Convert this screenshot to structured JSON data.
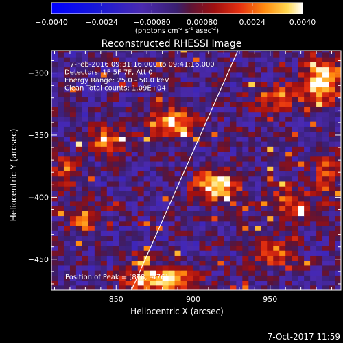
{
  "chart_data": {
    "type": "heatmap",
    "title": "Reconstructed RHESSI Image",
    "xlabel": "Heliocentric X (arcsec)",
    "ylabel": "Heliocentric Y (arcsec)",
    "xlim": [
      808,
      996
    ],
    "ylim": [
      -475,
      -282
    ],
    "x_ticks": [
      850,
      900,
      950
    ],
    "y_ticks": [
      -450,
      -400,
      -350,
      -300
    ],
    "colorbar": {
      "min": -0.004,
      "max": 0.004,
      "ticks": [
        "-0.0040",
        "-0.0024",
        "-0.00080",
        "0.00080",
        "0.0024",
        "0.0040"
      ],
      "units_label": "(photons cm",
      "units_sup1": "-2",
      "units_mid": " s",
      "units_sup2": "-1",
      "units_mid2": " asec",
      "units_sup3": "-2",
      "units_end": ")"
    },
    "info_lines": [
      "7-Feb-2016 09:31:16.000 to 09:41:16.000",
      "Detectors: 1F 5F 7F, Att 0",
      "Energy Range: 25.0 - 50.0 keV",
      "Clean     Total counts: 1.09E+04"
    ],
    "peak_label": "Position of Peak = [878, -476]",
    "limb_line": [
      [
        860,
        -475
      ],
      [
        929,
        -282
      ]
    ],
    "sources": [
      {
        "x": 915,
        "y": -391,
        "amp": 0.0044,
        "sx": 10,
        "sy": 8
      },
      {
        "x": 886,
        "y": -341,
        "amp": 0.0038,
        "sx": 12,
        "sy": 8
      },
      {
        "x": 843,
        "y": -353,
        "amp": 0.0026,
        "sx": 9,
        "sy": 7
      },
      {
        "x": 830,
        "y": -418,
        "amp": 0.0028,
        "sx": 7,
        "sy": 8
      },
      {
        "x": 878,
        "y": -466,
        "amp": 0.004,
        "sx": 16,
        "sy": 7
      },
      {
        "x": 984,
        "y": -305,
        "amp": 0.0042,
        "sx": 9,
        "sy": 12
      },
      {
        "x": 954,
        "y": -319,
        "amp": 0.0026,
        "sx": 12,
        "sy": 7
      },
      {
        "x": 962,
        "y": -404,
        "amp": 0.0026,
        "sx": 9,
        "sy": 9
      },
      {
        "x": 952,
        "y": -446,
        "amp": 0.0026,
        "sx": 10,
        "sy": 8
      },
      {
        "x": 986,
        "y": -384,
        "amp": 0.0022,
        "sx": 6,
        "sy": 14
      },
      {
        "x": 818,
        "y": -380,
        "amp": 0.002,
        "sx": 6,
        "sy": 10
      }
    ]
  },
  "footer": {
    "timestamp": "7-Oct-2017 11:59"
  }
}
